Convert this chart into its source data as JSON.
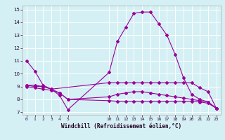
{
  "xlabel": "Windchill (Refroidissement éolien,°C)",
  "background_color": "#d4f0f4",
  "line_color": "#990099",
  "grid_color": "#ffffff",
  "xlim": [
    -0.5,
    23.5
  ],
  "ylim": [
    6.8,
    15.3
  ],
  "yticks": [
    7,
    8,
    9,
    10,
    11,
    12,
    13,
    14,
    15
  ],
  "xticks": [
    0,
    1,
    2,
    3,
    4,
    5,
    10,
    11,
    12,
    13,
    14,
    15,
    16,
    17,
    18,
    19,
    20,
    21,
    22,
    23
  ],
  "line1_x": [
    0,
    1,
    2,
    3,
    4,
    5,
    10,
    11,
    12,
    13,
    14,
    15,
    16,
    17,
    18,
    19,
    20,
    21,
    22,
    23
  ],
  "line1_y": [
    11.0,
    10.2,
    9.1,
    8.8,
    8.3,
    7.2,
    10.1,
    12.5,
    13.6,
    14.7,
    14.8,
    14.8,
    13.9,
    13.0,
    11.5,
    9.7,
    8.4,
    8.0,
    7.8,
    7.3
  ],
  "line2_x": [
    0,
    1,
    2,
    3,
    10,
    11,
    12,
    13,
    14,
    15,
    16,
    17,
    18,
    19,
    20,
    21,
    22,
    23
  ],
  "line2_y": [
    9.1,
    9.1,
    9.0,
    8.8,
    9.3,
    9.3,
    9.3,
    9.3,
    9.3,
    9.3,
    9.3,
    9.3,
    9.3,
    9.3,
    9.3,
    8.9,
    8.6,
    7.3
  ],
  "line3_x": [
    0,
    1,
    2,
    3,
    4,
    5,
    10,
    11,
    12,
    13,
    14,
    15,
    16,
    17,
    18,
    19,
    20,
    21,
    22,
    23
  ],
  "line3_y": [
    9.1,
    9.0,
    9.0,
    8.8,
    8.5,
    8.0,
    8.2,
    8.4,
    8.5,
    8.6,
    8.6,
    8.5,
    8.4,
    8.3,
    8.2,
    8.1,
    8.0,
    7.9,
    7.8,
    7.3
  ],
  "line4_x": [
    0,
    1,
    2,
    3,
    4,
    5,
    10,
    11,
    12,
    13,
    14,
    15,
    16,
    17,
    18,
    19,
    20,
    21,
    22,
    23
  ],
  "line4_y": [
    9.0,
    8.9,
    8.8,
    8.7,
    8.5,
    8.0,
    7.9,
    7.85,
    7.85,
    7.85,
    7.85,
    7.85,
    7.85,
    7.85,
    7.85,
    7.85,
    7.85,
    7.8,
    7.7,
    7.3
  ]
}
